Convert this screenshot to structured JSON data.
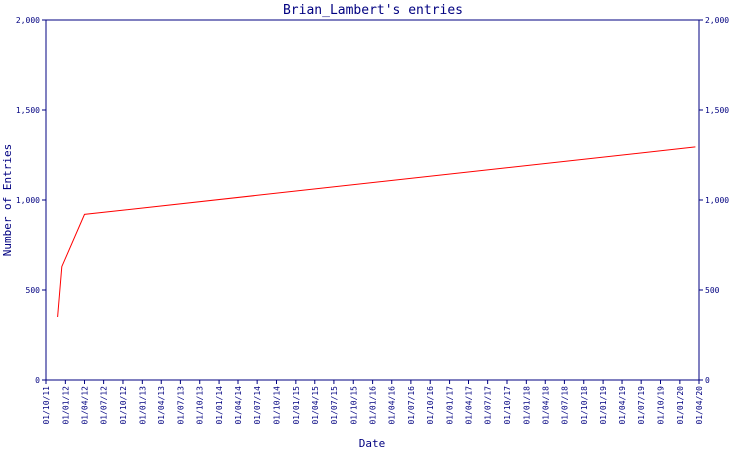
{
  "chart_data": {
    "type": "line",
    "title": "Brian_Lambert's entries",
    "xlabel": "Date",
    "ylabel": "Number of Entries",
    "ylim": [
      0,
      2000
    ],
    "yticks": [
      0,
      500,
      1000,
      1500,
      2000
    ],
    "ytick_labels": [
      "0",
      "500",
      "1,000",
      "1,500",
      "2,000"
    ],
    "xlim": [
      "2011-10-01",
      "2020-04-01"
    ],
    "xtick_labels": [
      "01/10/11",
      "01/01/12",
      "01/04/12",
      "01/07/12",
      "01/10/12",
      "01/01/13",
      "01/04/13",
      "01/07/13",
      "01/10/13",
      "01/01/14",
      "01/04/14",
      "01/07/14",
      "01/10/14",
      "01/01/15",
      "01/04/15",
      "01/07/15",
      "01/10/15",
      "01/01/16",
      "01/04/16",
      "01/07/16",
      "01/10/16",
      "01/01/17",
      "01/04/17",
      "01/07/17",
      "01/10/17",
      "01/01/18",
      "01/04/18",
      "01/07/18",
      "01/10/18",
      "01/01/19",
      "01/04/19",
      "01/07/19",
      "01/10/19",
      "01/01/20",
      "01/04/20"
    ],
    "grid": false,
    "series": [
      {
        "color": "#ff0000",
        "x": [
          "2011-11-25",
          "2011-12-15",
          "2012-04-01",
          "2020-03-15"
        ],
        "y": [
          350,
          630,
          920,
          1295
        ]
      }
    ]
  }
}
